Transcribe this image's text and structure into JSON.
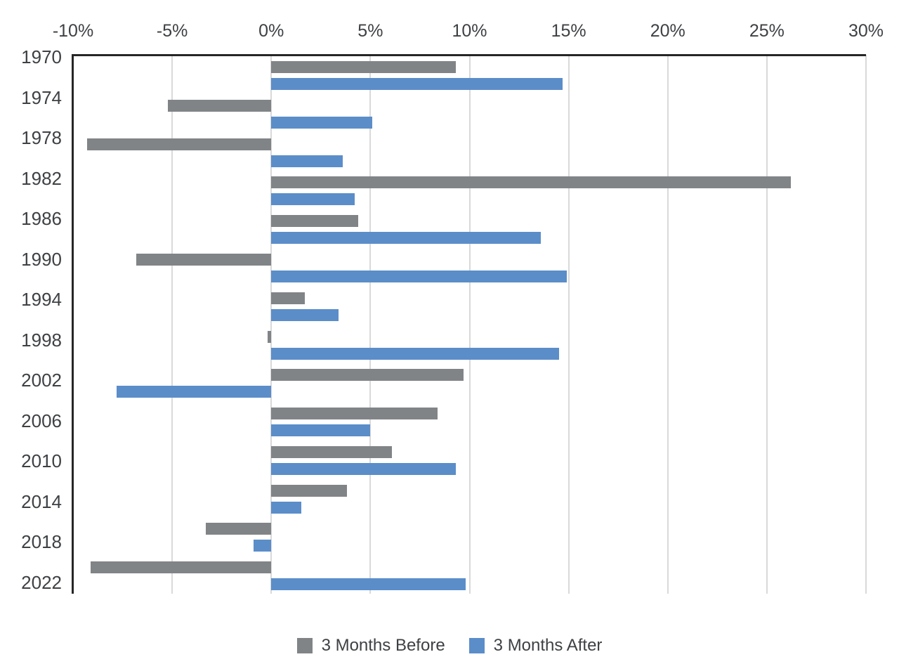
{
  "chart_data": {
    "type": "bar",
    "orientation": "horizontal",
    "title": "",
    "xlabel": "",
    "ylabel": "",
    "categories": [
      "1970",
      "1974",
      "1978",
      "1982",
      "1986",
      "1990",
      "1994",
      "1998",
      "2002",
      "2006",
      "2010",
      "2014",
      "2018",
      "2022"
    ],
    "series": [
      {
        "name": "3 Months Before",
        "color": "#818487",
        "values": [
          9.3,
          -5.2,
          -9.3,
          26.2,
          4.4,
          -6.8,
          1.7,
          -0.2,
          9.7,
          8.4,
          6.1,
          3.8,
          -3.3,
          -9.1
        ]
      },
      {
        "name": "3 Months After",
        "color": "#5b8dc9",
        "values": [
          14.7,
          5.1,
          3.6,
          4.2,
          13.6,
          14.9,
          3.4,
          14.5,
          -7.8,
          5.0,
          9.3,
          1.5,
          -0.9,
          9.8
        ]
      }
    ],
    "x_axis": {
      "position": "top",
      "unit": "%",
      "min": -10,
      "max": 30,
      "tick_labels": [
        "-10%",
        "-5%",
        "0%",
        "5%",
        "10%",
        "15%",
        "20%",
        "25%",
        "30%"
      ],
      "tick_values": [
        -10,
        -5,
        0,
        5,
        10,
        15,
        20,
        25,
        30
      ]
    },
    "grid": true,
    "legend_position": "bottom",
    "colors": {
      "axis_line": "#262626",
      "gridline": "#d9d9d9",
      "text": "#3e4144",
      "background": "#ffffff"
    }
  }
}
